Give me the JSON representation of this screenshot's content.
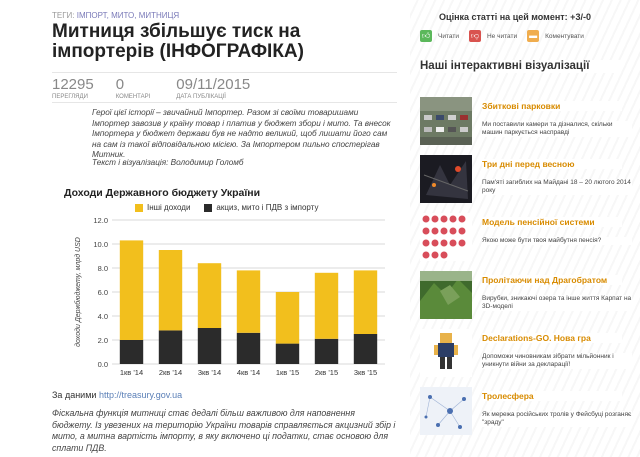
{
  "tags": {
    "prefix": "ТЕГИ:",
    "items": [
      "ІМПОРТ",
      "МИТО",
      "МИТНИЦЯ"
    ]
  },
  "article": {
    "title": "Митниця збільшує тиск на імпортерів (ІНФОГРАФІКА)",
    "stats": [
      {
        "value": "12295",
        "label": "ПЕРЕГЛЯДИ"
      },
      {
        "value": "0",
        "label": "КОМЕНТАРІ"
      },
      {
        "value": "09/11/2015",
        "label": "ДАТА ПУБЛІКАЦІЇ"
      }
    ],
    "intro": "Герої цієї історії – звичайний Імпортер. Разом зі своїми товаришами Імпортер завозив у країну товар і платив у бюджет збори і мито. Та внесок Імпортера у бюджет держави був не надто великий, щоб лишати його сам на сам із такої відповідальною місією. За Імпортером пильно спостерігав Митник.",
    "credits": "Текст і візуалізація: Володимир Голомб",
    "source_prefix": "За даними",
    "source_link": "http://treasury.gov.ua",
    "body": "Фіскальна функція митниці стає дедалі більш важливою для наповнення бюджету. Із увезених на територію України товарів справляється акцизний збір і мито, а митна вартість імпорту, в яку включено ці податки, стає основою для сплати ПДВ."
  },
  "chart_data": {
    "type": "bar",
    "title": "Доходи Державного бюджету України",
    "ylabel": "доходи Держбюджету, млрд USD",
    "categories": [
      "1кв '14",
      "2кв '14",
      "3кв '14",
      "4кв '14",
      "1кв '15",
      "2кв '15",
      "3кв '15"
    ],
    "series": [
      {
        "name": "акциз, мито і ПДВ з імпорту",
        "values": [
          2.0,
          2.8,
          3.0,
          2.6,
          1.7,
          2.1,
          2.5
        ],
        "color": "#2b2b2b"
      },
      {
        "name": "Інші доходи",
        "values": [
          8.3,
          6.7,
          5.4,
          5.2,
          4.3,
          5.5,
          5.3
        ],
        "color": "#f2bf1d"
      }
    ],
    "ylim": [
      0,
      12
    ],
    "yticks": [
      "0.0",
      "2.0",
      "4.0",
      "6.0",
      "8.0",
      "10.0",
      "12.0"
    ],
    "stacked": true,
    "grid": true,
    "legend": "top"
  },
  "sidebar": {
    "rating_title": "Оцінка статті на цей момент: +3/-0",
    "buttons": [
      {
        "label": "Читати",
        "icon": "thumbs-up-icon",
        "color": "#5bb85b"
      },
      {
        "label": "Не читати",
        "icon": "thumbs-down-icon",
        "color": "#d9534f"
      },
      {
        "label": "Коментувати",
        "icon": "comment-icon",
        "color": "#f0ad4e"
      }
    ],
    "viz_heading": "Наші інтерактивні візуалізації",
    "viz_items": [
      {
        "title": "Збиткові парковки",
        "desc": "Ми поставили камери та дізналися, скільки машин паркується насправді"
      },
      {
        "title": "Три дні перед весною",
        "desc": "Пам'яті загиблих на Майдані 18 – 20 лютого 2014 року"
      },
      {
        "title": "Модель пенсійної системи",
        "desc": "Якою може бути твоя майбутня пенсія?"
      },
      {
        "title": "Пролітаючи над Драгобратом",
        "desc": "Вирубки, зникаючі озера та інше життя Карпат на 3D-моделі"
      },
      {
        "title": "Declarations-GO. Нова гра",
        "desc": "Допоможи чиновникам зібрати мільйонник і уникнути війни за декларації!"
      },
      {
        "title": "Тролесфера",
        "desc": "Як мережа російських тролів у Фейсбуці розганяє \"зраду\""
      }
    ]
  }
}
